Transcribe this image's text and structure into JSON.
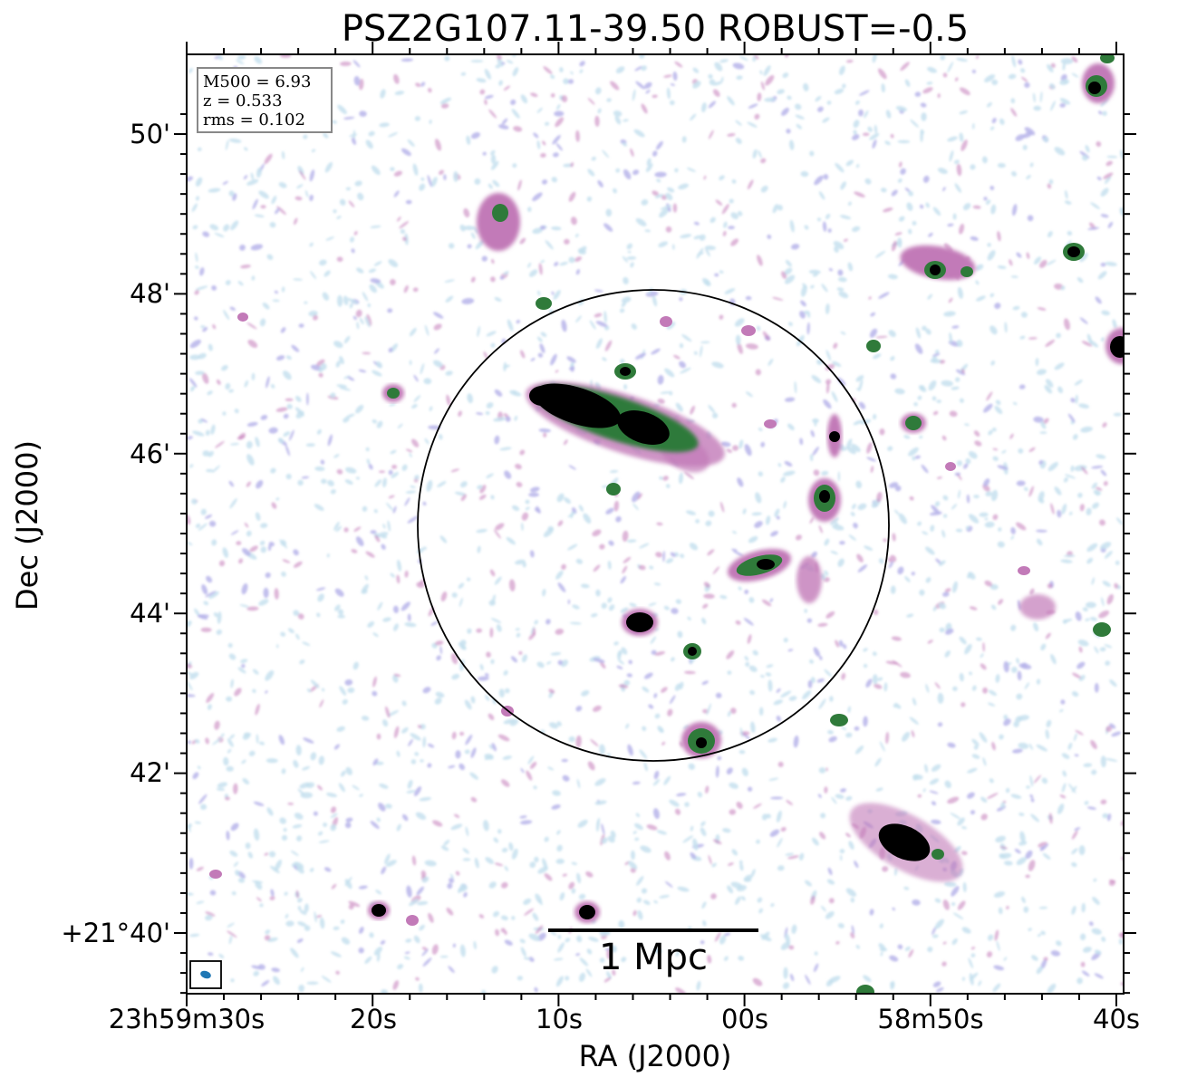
{
  "title": "PSZ2G107.11-39.50 ROBUST=-0.5",
  "axes": {
    "xlabel": "RA (J2000)",
    "ylabel": "Dec (J2000)",
    "x_ticks": [
      "23h59m30s",
      "20s",
      "10s",
      "00s",
      "58m50s",
      "40s"
    ],
    "y_ticks": [
      "50'",
      "48'",
      "46'",
      "44'",
      "42'",
      "+21°40'"
    ]
  },
  "info": {
    "m500": "M500 = 6.93",
    "z": "z = 0.533",
    "rms": "rms = 0.102"
  },
  "scale_bar": {
    "label": "1 Mpc"
  },
  "colors": {
    "noise_light": "#c6e0ee",
    "noise_violet": "#b7b4ea",
    "emission_pink": "#c27ab8",
    "emission_green": "#2f7a3a",
    "emission_core": "#000000",
    "beam": "#1f77b4",
    "circle": "#000000",
    "infobox_border": "#888888"
  },
  "icons": {
    "beam": "beam-ellipse-icon"
  }
}
